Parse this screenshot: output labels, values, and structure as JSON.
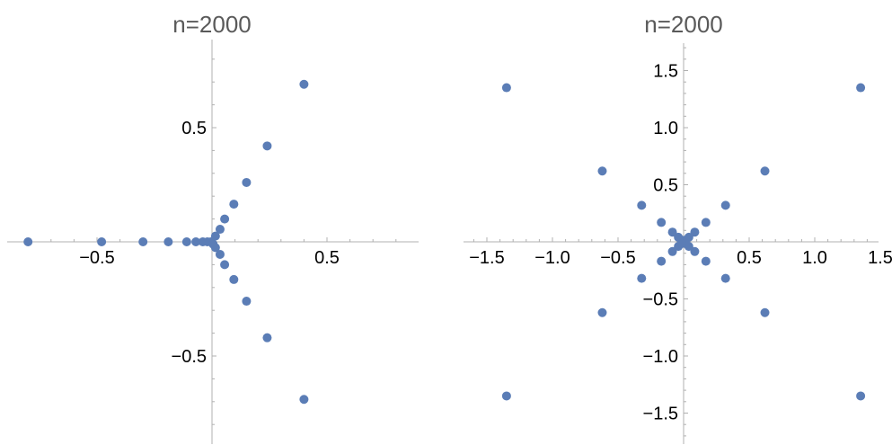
{
  "colors": {
    "point": "#5b7db6",
    "axis": "#b0b0b0",
    "title": "#5a5a5a",
    "tick_label": "#000000"
  },
  "chart_data": [
    {
      "type": "scatter",
      "title": "n=2000",
      "xlabel": "",
      "ylabel": "",
      "xlim": [
        -0.9,
        0.9
      ],
      "ylim": [
        -0.9,
        0.9
      ],
      "grid": false,
      "legend": "none",
      "x_ticks": [
        -0.5,
        0.5
      ],
      "x_tick_labels": [
        "−0.5",
        "0.5"
      ],
      "y_ticks": [
        0.5,
        -0.5
      ],
      "y_tick_labels": [
        "0.5",
        "−0.5"
      ],
      "series": [
        {
          "points": [
            [
              -0.8,
              0.0
            ],
            [
              -0.48,
              0.0
            ],
            [
              -0.3,
              0.0
            ],
            [
              -0.19,
              0.0
            ],
            [
              -0.11,
              0.0
            ],
            [
              -0.07,
              0.0
            ],
            [
              -0.04,
              0.0
            ],
            [
              -0.02,
              0.0
            ],
            [
              -0.005,
              0.0
            ],
            [
              0.4,
              0.69
            ],
            [
              0.24,
              0.42
            ],
            [
              0.15,
              0.26
            ],
            [
              0.095,
              0.165
            ],
            [
              0.055,
              0.1
            ],
            [
              0.035,
              0.055
            ],
            [
              0.015,
              0.025
            ],
            [
              0.4,
              -0.69
            ],
            [
              0.24,
              -0.42
            ],
            [
              0.15,
              -0.26
            ],
            [
              0.095,
              -0.165
            ],
            [
              0.055,
              -0.1
            ],
            [
              0.035,
              -0.055
            ],
            [
              0.015,
              -0.025
            ],
            [
              0.005,
              -0.01
            ]
          ]
        }
      ]
    },
    {
      "type": "scatter",
      "title": "n=2000",
      "xlabel": "",
      "ylabel": "",
      "xlim": [
        -1.5,
        1.5
      ],
      "ylim": [
        -1.5,
        1.5
      ],
      "grid": false,
      "legend": "none",
      "x_ticks": [
        -1.5,
        -1.0,
        -0.5,
        0.5,
        1.0,
        1.5
      ],
      "x_tick_labels": [
        "−1.5",
        "−1.0",
        "−0.5",
        "0.5",
        "1.0",
        "1.5"
      ],
      "y_ticks": [
        1.5,
        1.0,
        0.5,
        -0.5,
        -1.0,
        -1.5
      ],
      "y_tick_labels": [
        "1.5",
        "1.0",
        "0.5",
        "−0.5",
        "−1.0",
        "−1.5"
      ],
      "series": [
        {
          "points": [
            [
              1.35,
              1.35
            ],
            [
              -1.35,
              1.35
            ],
            [
              1.35,
              -1.35
            ],
            [
              -1.35,
              -1.35
            ],
            [
              0.62,
              0.62
            ],
            [
              -0.62,
              0.62
            ],
            [
              0.62,
              -0.62
            ],
            [
              -0.62,
              -0.62
            ],
            [
              0.32,
              0.32
            ],
            [
              -0.32,
              0.32
            ],
            [
              0.32,
              -0.32
            ],
            [
              -0.32,
              -0.32
            ],
            [
              0.17,
              0.17
            ],
            [
              -0.17,
              0.17
            ],
            [
              0.17,
              -0.17
            ],
            [
              -0.17,
              -0.17
            ],
            [
              0.085,
              0.085
            ],
            [
              -0.085,
              0.085
            ],
            [
              0.085,
              -0.085
            ],
            [
              -0.085,
              -0.085
            ],
            [
              0.04,
              0.04
            ],
            [
              -0.04,
              0.04
            ],
            [
              0.04,
              -0.04
            ],
            [
              -0.04,
              -0.04
            ],
            [
              0.015,
              0.015
            ],
            [
              -0.015,
              0.015
            ],
            [
              0.015,
              -0.015
            ],
            [
              -0.015,
              -0.015
            ]
          ]
        }
      ]
    }
  ]
}
